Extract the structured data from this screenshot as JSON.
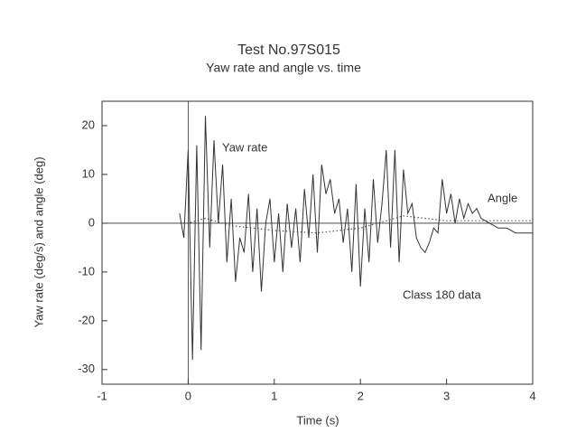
{
  "chart_data": {
    "type": "line",
    "title": "Test No.97S015",
    "subtitle": "Yaw rate and angle vs. time",
    "x_label": "Time (s)",
    "y_label": "Yaw rate (deg/s) and angle (deg)",
    "xlim": [
      -1,
      4
    ],
    "xticks": [
      -1,
      0,
      1,
      2,
      3,
      4
    ],
    "ylim": [
      -33,
      25
    ],
    "yticks": [
      -30,
      -20,
      -10,
      0,
      10,
      20
    ],
    "annotations": [
      "Yaw rate",
      "Angle",
      "Class 180 data"
    ],
    "series": [
      {
        "name": "Yaw rate",
        "color": "#333333",
        "style": "solid",
        "x": [
          -0.1,
          -0.05,
          0,
          0.05,
          0.1,
          0.15,
          0.2,
          0.25,
          0.3,
          0.35,
          0.4,
          0.45,
          0.5,
          0.55,
          0.6,
          0.65,
          0.7,
          0.75,
          0.8,
          0.85,
          0.9,
          0.95,
          1,
          1.05,
          1.1,
          1.15,
          1.2,
          1.25,
          1.3,
          1.35,
          1.4,
          1.45,
          1.5,
          1.55,
          1.6,
          1.65,
          1.7,
          1.75,
          1.8,
          1.85,
          1.9,
          1.95,
          2,
          2.05,
          2.1,
          2.15,
          2.2,
          2.25,
          2.3,
          2.35,
          2.4,
          2.45,
          2.5,
          2.55,
          2.6,
          2.65,
          2.7,
          2.75,
          2.8,
          2.85,
          2.9,
          2.95,
          3,
          3.05,
          3.1,
          3.15,
          3.2,
          3.25,
          3.3,
          3.35,
          3.4,
          3.5,
          3.6,
          3.7,
          3.8,
          3.9,
          4
        ],
        "values": [
          2,
          -3,
          15,
          -28,
          16,
          -26,
          22,
          -5,
          17,
          0,
          12,
          -8,
          5,
          -12,
          -3,
          -6,
          6,
          -10,
          3,
          -14,
          0,
          5,
          -8,
          2,
          -10,
          4,
          -5,
          3,
          -8,
          7,
          -3,
          10,
          -6,
          12,
          6,
          9,
          2,
          5,
          -4,
          3,
          -10,
          8,
          -13,
          3,
          -8,
          9,
          -4,
          4,
          15,
          -5,
          15,
          -8,
          11,
          2,
          4,
          -3,
          -5,
          -6,
          -4,
          -1,
          -2,
          9,
          2,
          6,
          0,
          5,
          1,
          4,
          2,
          3,
          1,
          0,
          -1,
          -1,
          -2,
          -2,
          -2
        ]
      },
      {
        "name": "Angle",
        "color": "#555555",
        "style": "dotted",
        "x": [
          -0.1,
          0,
          0.2,
          0.5,
          1,
          1.5,
          2,
          2.5,
          3,
          3.5,
          4
        ],
        "values": [
          0,
          0,
          1,
          -0.5,
          -1.5,
          -2,
          -1,
          1.5,
          0.5,
          0.5,
          0.5
        ]
      }
    ]
  }
}
